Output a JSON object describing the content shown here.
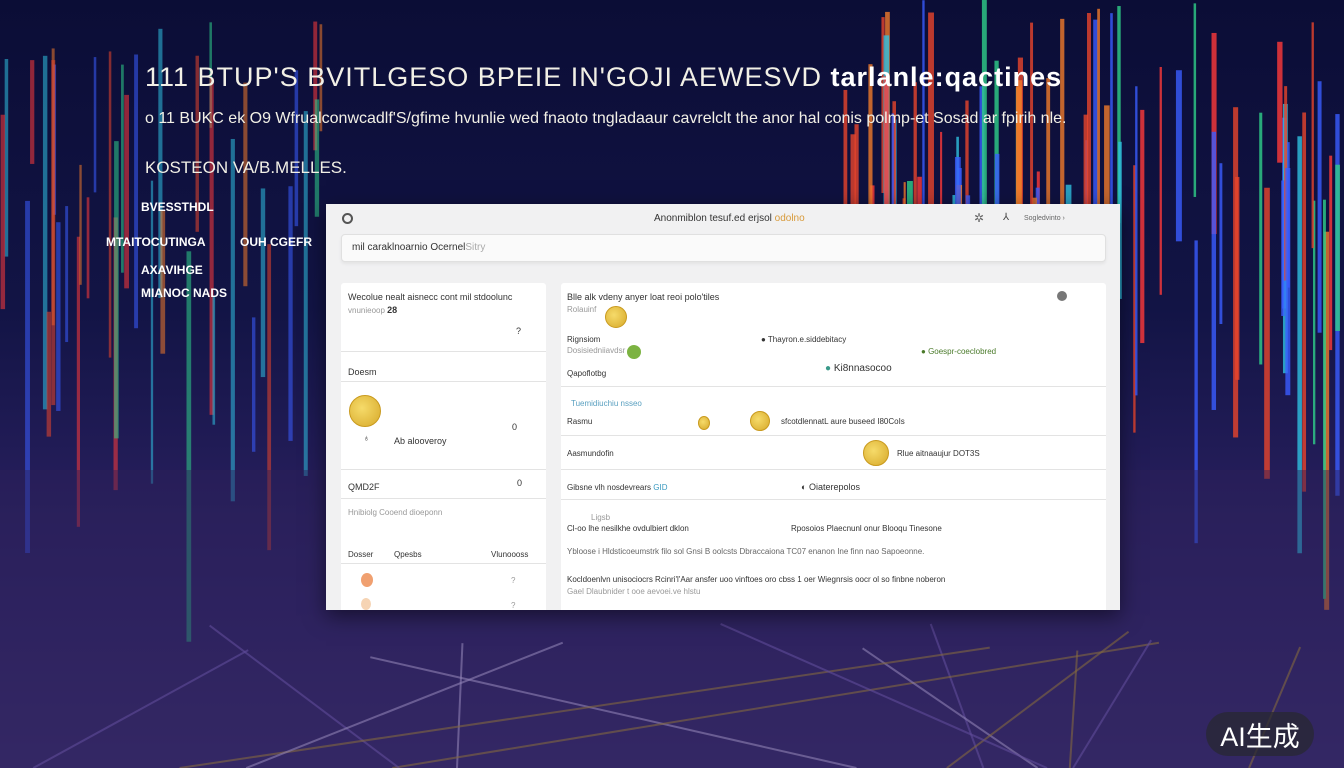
{
  "hero": {
    "title": "111 BTUP'S BVITLGESO BPEIE IN'GOJI AEWESVD",
    "title_bold": "tarlanle:qactines",
    "subtitle": "o 11 BUKC ek O9 Wfrualconwcadlf'S/gfime hvunlie wed fnaoto tngladaaur cavrelclt the anor hal conis polmp-et Sosad ar fpirih nle.",
    "section": "KOSTEON VA/B.MELLES."
  },
  "side_labels": [
    "BVESSTHDL",
    "MTAITOCUTINGA",
    "OUH CGEFR",
    "AXAVIHGE",
    "MIANOC NADS"
  ],
  "window": {
    "back_icon": "back-circle-icon",
    "title": "Anonmiblon tesuf.ed erjsol",
    "title_accent": "odolno",
    "settings_icon": "gear-icon",
    "user_icon": "user-icon",
    "account_label": "Sogledvinto",
    "search_value": "mil caraklnoarnio Ocernel",
    "search_placeholder": "Sitry"
  },
  "left_card": {
    "heading": "Wecolue nealt aisnecc cont mil stdoolunc",
    "sub": "vnunieoop",
    "sub_value": "28",
    "q1": "?",
    "section1": "Doesm",
    "item1_label": "Ab alooveroy",
    "item1_value": "0",
    "section2": "QMD2F",
    "section2_value": "0",
    "note": "Hnibiolg Cooend dioeponn",
    "cols": [
      "Dosser",
      "Qpesbs",
      "Vlunoooss"
    ],
    "rows": [
      "?",
      "?"
    ]
  },
  "right_card": {
    "heading": "Blle alk vdeny anyer loat reoi polo'tiles",
    "sub": "Rolauinf",
    "rows": [
      {
        "label": "Rignsiom",
        "sub": "Dosisiedniiavdsr",
        "mid": "Thayron.e.siddebitacy",
        "right": "Goespr-coeclobred",
        "extra": "Ki8nnasocoo"
      },
      {
        "label": "Qapoflotbg",
        "sub": "Tuemidiuchiu nsseo",
        "mid": "sfcotdlennatL aure buseed",
        "right": "I80CoIs"
      },
      {
        "label": "Rasmu",
        "mid": "sfcotdlennatL aure buseed"
      },
      {
        "label": "Aasmundofin",
        "right": "Rlue aitnaaujur DOT3S"
      },
      {
        "label": "Gibsne vlh nosdevrears",
        "tag": "GID",
        "mid": "Oiaterepolos"
      }
    ],
    "para_small": "Ligsb",
    "para_col1": "Cl-oo lhe nesilkhe ovdulbiert dklon",
    "para_col2": "Rposoios Plaecnunl onur Blooqu Tinesone",
    "para_line1": "Ybloose i Hldsticoeumstrk filo sol Gnsi B oolcsts Dbraccaiona TC07 enanon Ine finn nao Sapoeonne.",
    "para_line2": "Kocldoenlvn unisociocrs Rcinri'l'Aar ansfer uoo vinftoes oro cbss 1 oer Wiegnrsis oocr ol so finbne noberon",
    "para_line3": "Gael Dlaubnider t ooe aevoei.ve hlstu"
  },
  "badge": "AI生成",
  "colors": {
    "accent": "#d89a3a",
    "coin": "#e8c24a",
    "green": "#7cb342",
    "panel": "#f1f1f2"
  }
}
